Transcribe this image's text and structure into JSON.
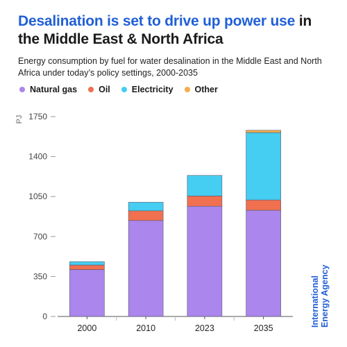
{
  "header": {
    "title_highlight": "Desalination is set to drive up power use",
    "title_rest": " in the Middle East & North Africa",
    "subtitle": "Energy consumption by fuel for water desalination in the Middle East and North Africa under today’s policy settings, 2000-2035"
  },
  "colors": {
    "accent": "#1f5fd6",
    "natural_gas": "#ab86ec",
    "oil": "#f0704f",
    "electricity": "#45cdf2",
    "other": "#f2ae4c"
  },
  "chart_data": {
    "type": "bar",
    "stacked": true,
    "categories": [
      "2000",
      "2010",
      "2023",
      "2035"
    ],
    "series": [
      {
        "name": "Natural gas",
        "color": "#ab86ec",
        "values": [
          410,
          840,
          965,
          930
        ]
      },
      {
        "name": "Oil",
        "color": "#f0704f",
        "values": [
          40,
          85,
          90,
          90
        ]
      },
      {
        "name": "Electricity",
        "color": "#45cdf2",
        "values": [
          30,
          75,
          180,
          590
        ]
      },
      {
        "name": "Other",
        "color": "#f2ae4c",
        "values": [
          0,
          0,
          0,
          20
        ]
      }
    ],
    "ylabel": "PJ",
    "ylim": [
      0,
      1750
    ],
    "yticks": [
      "0",
      "350",
      "700",
      "1050",
      "1400",
      "1750"
    ],
    "grid": false,
    "legend_position": "top-left"
  },
  "branding": {
    "line1": "International",
    "line2": "Energy Agency"
  }
}
